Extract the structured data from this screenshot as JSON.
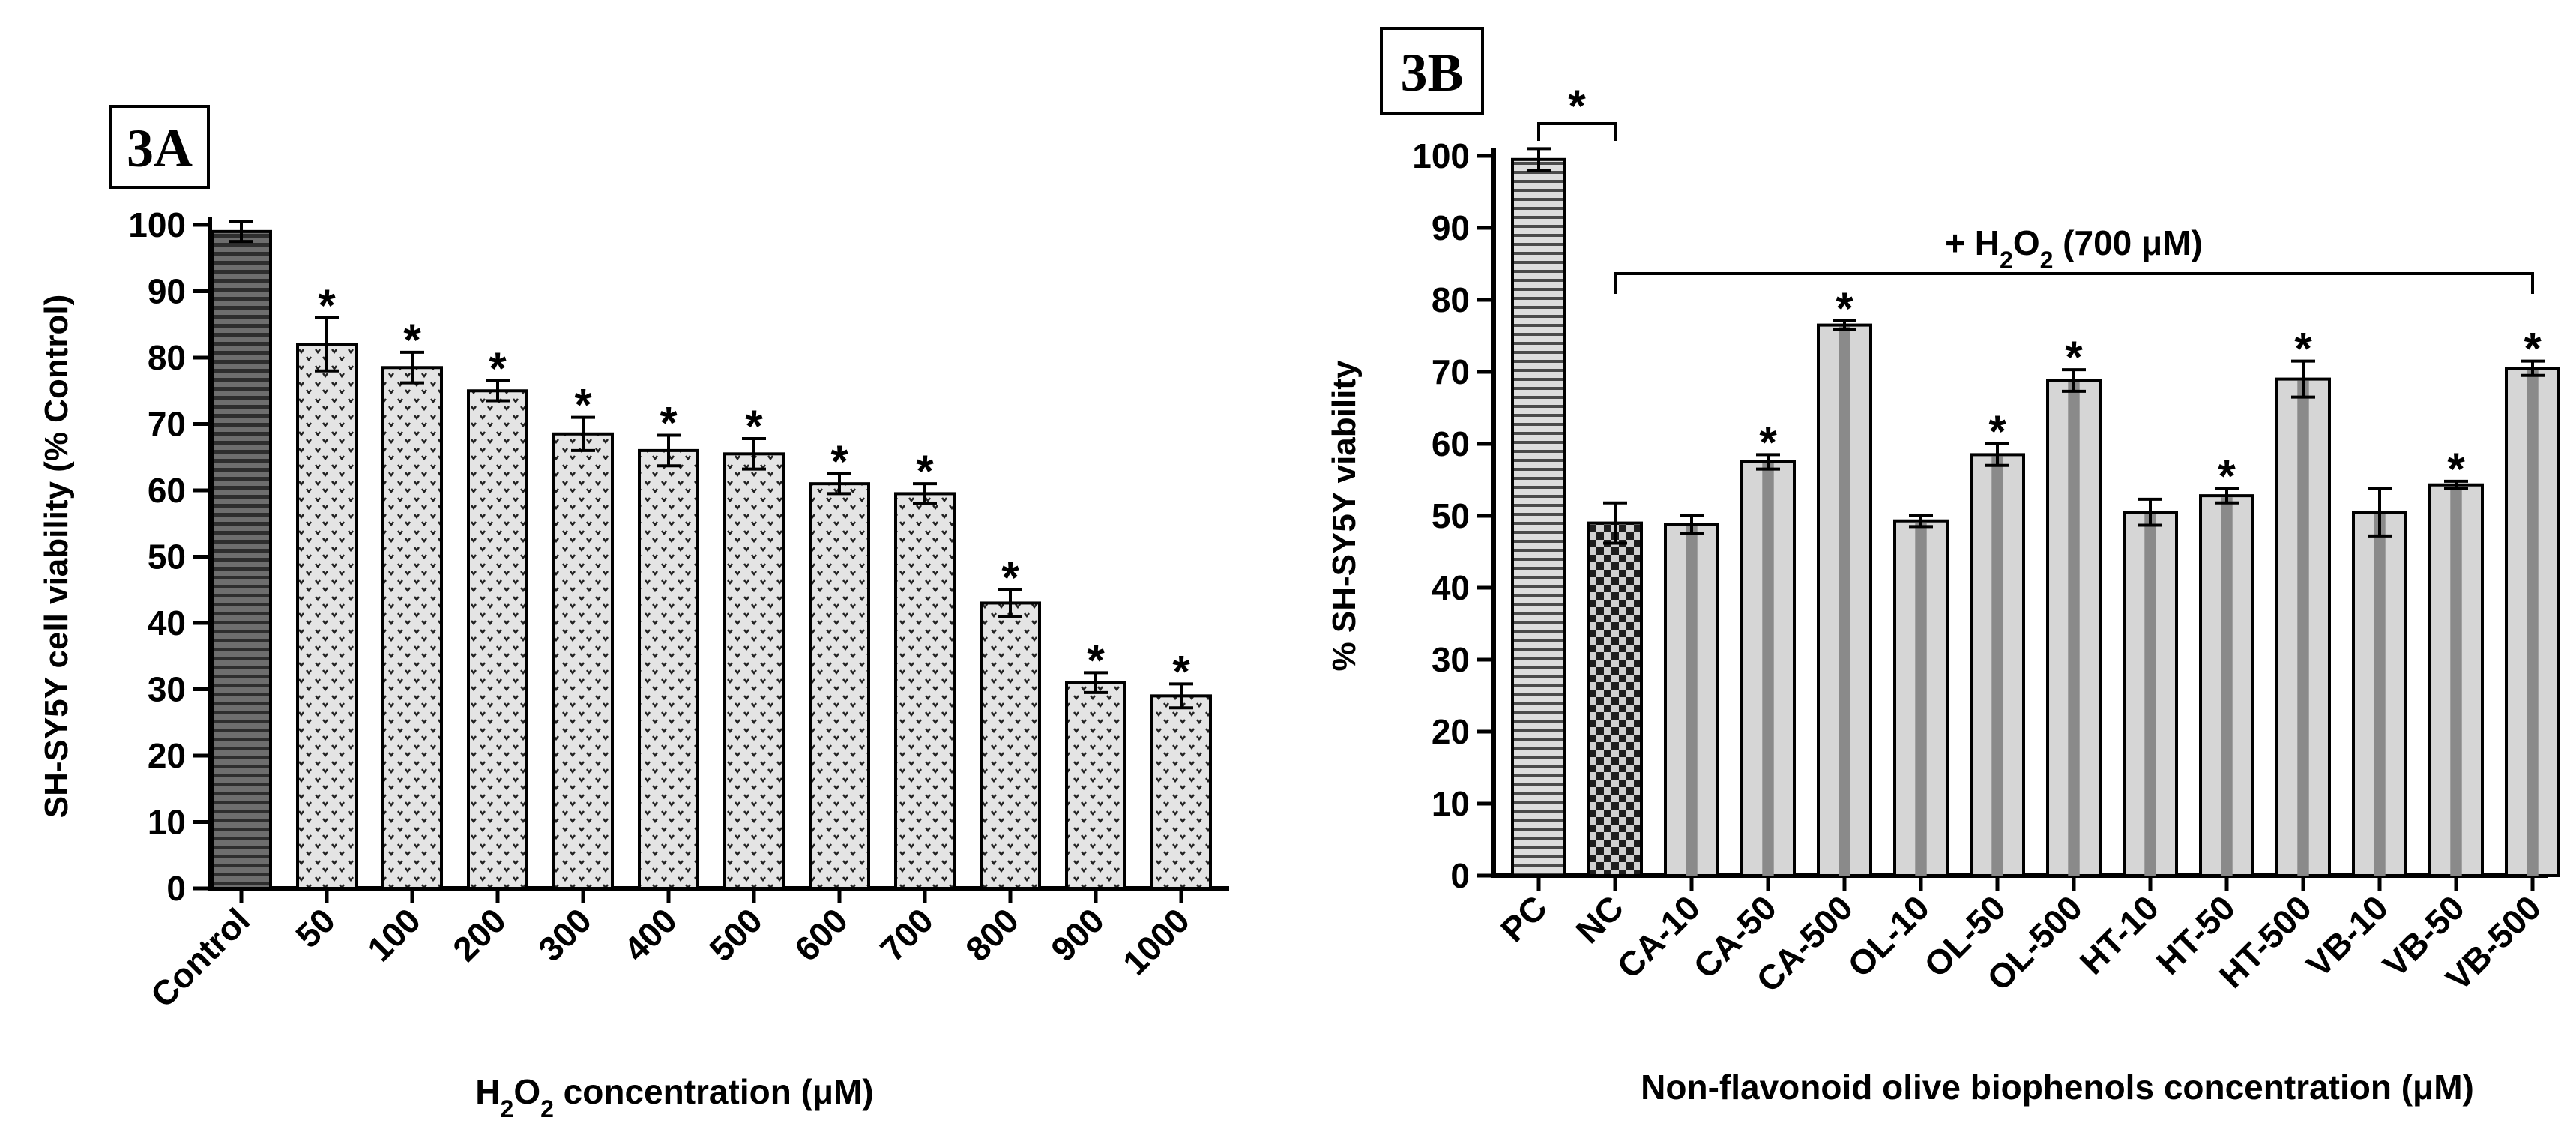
{
  "chart_data": [
    {
      "type": "bar",
      "panel_label": "3A",
      "categories": [
        "Control",
        "50",
        "100",
        "200",
        "300",
        "400",
        "500",
        "600",
        "700",
        "800",
        "900",
        "1000"
      ],
      "values": [
        99,
        82,
        78.5,
        75,
        68.5,
        66,
        65.5,
        61,
        59.5,
        43,
        31,
        29
      ],
      "errors": [
        1.5,
        4,
        2.3,
        1.5,
        2.5,
        2.3,
        2.3,
        1.5,
        1.5,
        2,
        1.5,
        1.8
      ],
      "significant": [
        false,
        true,
        true,
        true,
        true,
        true,
        true,
        true,
        true,
        true,
        true,
        true
      ],
      "significance_mark": "*",
      "fills": [
        "hstripe-dark",
        "dots",
        "dots",
        "dots",
        "dots",
        "dots",
        "dots",
        "dots",
        "dots",
        "dots",
        "dots",
        "dots"
      ],
      "ylabel": "SH-SY5Y cell viability (% Control)",
      "xlabel_parts": [
        "H",
        "2",
        "O",
        "2",
        " concentration (μM)"
      ],
      "ylim": [
        0,
        100
      ],
      "yticks": [
        "0",
        "10",
        "20",
        "30",
        "40",
        "50",
        "60",
        "70",
        "80",
        "90",
        "100"
      ],
      "grid": false
    },
    {
      "type": "bar",
      "panel_label": "3B",
      "categories": [
        "PC",
        "NC",
        "CA-10",
        "CA-50",
        "CA-500",
        "OL-10",
        "OL-50",
        "OL-500",
        "HT-10",
        "HT-50",
        "HT-500",
        "VB-10",
        "VB-50",
        "VB-500"
      ],
      "values": [
        99.5,
        49,
        48.8,
        57.5,
        76.5,
        49.3,
        58.5,
        68.8,
        50.5,
        52.8,
        69,
        50.5,
        54.3,
        70.5
      ],
      "errors": [
        1.5,
        2.8,
        1.3,
        1,
        0.6,
        0.8,
        1.5,
        1.5,
        1.8,
        1,
        2.5,
        3.3,
        0.5,
        1
      ],
      "significant": [
        false,
        false,
        false,
        true,
        true,
        false,
        true,
        true,
        false,
        true,
        true,
        false,
        true,
        true
      ],
      "significance_mark": "*",
      "fills": [
        "hstripe-light",
        "checker",
        "vstripe",
        "vstripe",
        "vstripe",
        "vstripe",
        "vstripe",
        "vstripe",
        "vstripe",
        "vstripe",
        "vstripe",
        "vstripe",
        "vstripe",
        "vstripe"
      ],
      "ylabel": "% SH-SY5Y viability",
      "xlabel": "Non-flavonoid olive biophenols concentration (μM)",
      "annotation_parts": [
        "+ H",
        "2",
        "O",
        "2",
        " (700 μM)"
      ],
      "pc_nc_mark": "*",
      "ylim": [
        0,
        100
      ],
      "yticks": [
        "0",
        "10",
        "20",
        "30",
        "40",
        "50",
        "60",
        "70",
        "80",
        "90",
        "100"
      ],
      "grid": false
    }
  ]
}
